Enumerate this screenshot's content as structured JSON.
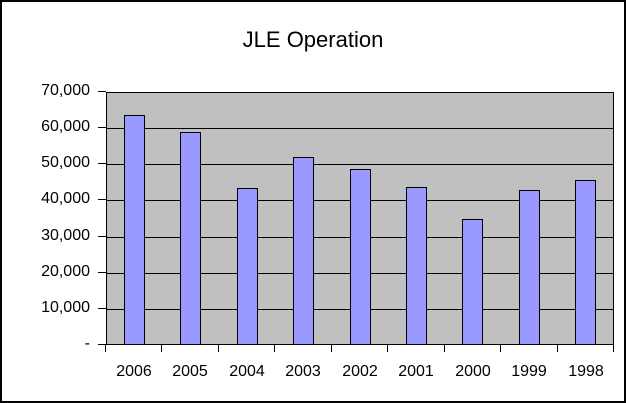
{
  "window": {
    "background_color": "#FFFFFF",
    "frame_border_color": "#000000"
  },
  "chart_data": {
    "type": "bar",
    "title": "JLE Operation",
    "categories": [
      "2006",
      "2005",
      "2004",
      "2003",
      "2002",
      "2001",
      "2000",
      "1999",
      "1998"
    ],
    "values": [
      63600,
      59000,
      43500,
      52000,
      48600,
      43800,
      34900,
      43000,
      45700
    ],
    "ylim": [
      0,
      70000
    ],
    "y_tick_step": 10000,
    "y_tick_labels": [
      "70,000",
      "60,000",
      "50,000",
      "40,000",
      "30,000",
      "20,000",
      "10,000",
      "-"
    ],
    "grid": true,
    "legend": false,
    "plot_background_color": "#C0C0C0",
    "gridline_color": "#000000",
    "bar_fill_color": "#9999FF",
    "bar_border_color": "#000000"
  }
}
